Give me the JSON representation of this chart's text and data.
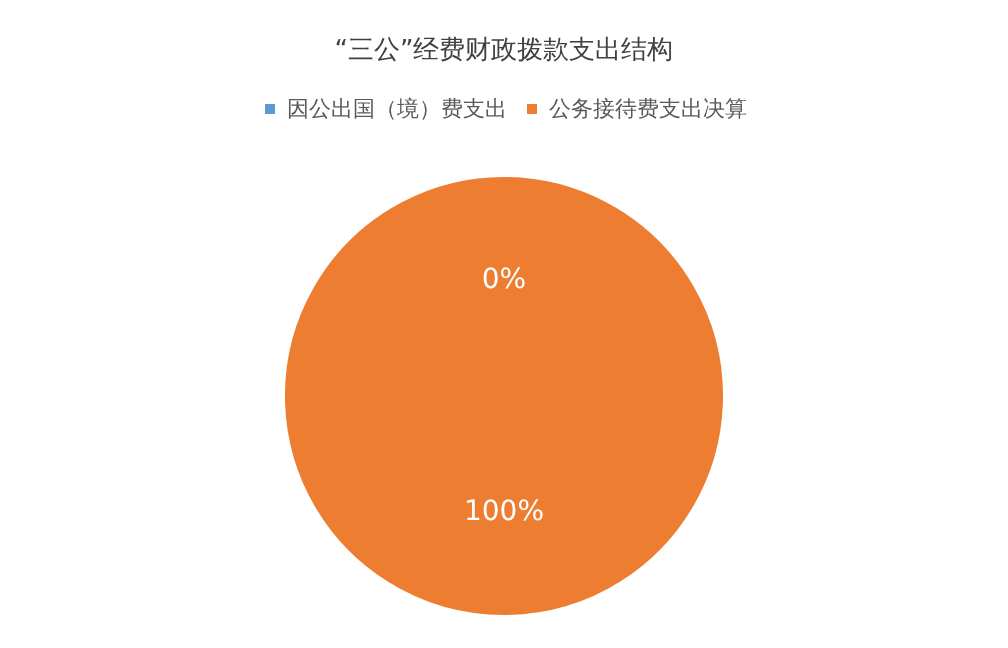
{
  "chart_data": {
    "type": "pie",
    "title": "“三公”经费财政拨款支出结构",
    "categories": [
      "因公出国（境）费支出",
      "公务接待费支出决算"
    ],
    "values": [
      0,
      100
    ],
    "colors": [
      "#5b9bd5",
      "#ed7d31"
    ],
    "value_labels": [
      "0%",
      "100%"
    ],
    "legend": "top"
  }
}
